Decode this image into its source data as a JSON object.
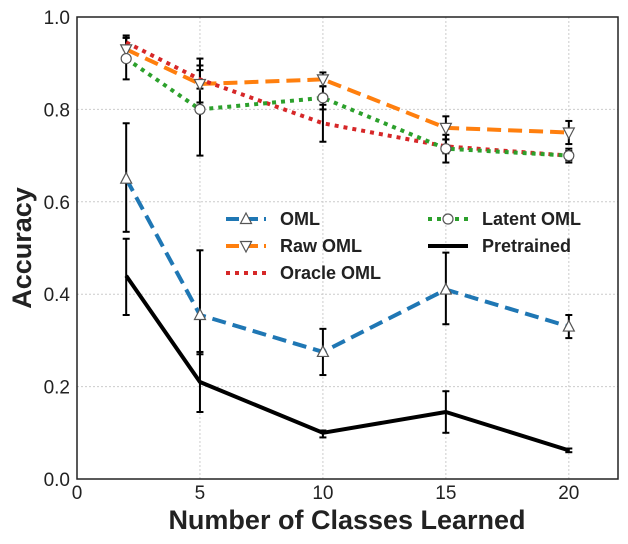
{
  "chart_data": {
    "type": "line",
    "title": "",
    "xlabel": "Number of Classes Learned",
    "ylabel": "Accuracy",
    "xlim": [
      0,
      22
    ],
    "ylim": [
      0.0,
      1.0
    ],
    "xticks": [
      0,
      5,
      10,
      15,
      20
    ],
    "xtick_labels": [
      "0",
      "5",
      "10",
      "15",
      "20"
    ],
    "yticks": [
      0.0,
      0.2,
      0.4,
      0.6,
      0.8,
      1.0
    ],
    "ytick_labels": [
      "0.0",
      "0.2",
      "0.4",
      "0.6",
      "0.8",
      "1.0"
    ],
    "grid": true,
    "legend_position": "center",
    "x": [
      2,
      5,
      10,
      15,
      20
    ],
    "series": [
      {
        "name": "OML",
        "values": [
          0.65,
          0.355,
          0.275,
          0.41,
          0.33
        ],
        "error_low": [
          0.535,
          0.27,
          0.225,
          0.335,
          0.305
        ],
        "error_high": [
          0.77,
          0.495,
          0.325,
          0.49,
          0.355
        ],
        "color": "#1f77b4",
        "style": "dashed",
        "marker": "triangle-up"
      },
      {
        "name": "Raw OML",
        "values": [
          0.93,
          0.855,
          0.865,
          0.76,
          0.75
        ],
        "error_low": [
          0.905,
          0.815,
          0.85,
          0.735,
          0.725
        ],
        "error_high": [
          0.955,
          0.895,
          0.88,
          0.785,
          0.775
        ],
        "color": "#ff7f0e",
        "style": "dashed",
        "marker": "triangle-down"
      },
      {
        "name": "Oracle OML",
        "values": [
          0.945,
          0.865,
          0.77,
          0.72,
          0.7
        ],
        "error_low": [
          0.93,
          0.845,
          0.73,
          0.705,
          0.69
        ],
        "error_high": [
          0.96,
          0.885,
          0.81,
          0.735,
          0.71
        ],
        "color": "#d62728",
        "style": "dotted",
        "marker": "none"
      },
      {
        "name": "Latent OML",
        "values": [
          0.91,
          0.8,
          0.825,
          0.715,
          0.7
        ],
        "error_low": [
          0.865,
          0.7,
          0.8,
          0.685,
          0.685
        ],
        "error_high": [
          0.955,
          0.91,
          0.85,
          0.745,
          0.715
        ],
        "color": "#2ca02c",
        "style": "dotted",
        "marker": "circle"
      },
      {
        "name": "Pretrained",
        "values": [
          0.44,
          0.21,
          0.1,
          0.145,
          0.062
        ],
        "error_low": [
          0.355,
          0.145,
          0.09,
          0.1,
          0.058
        ],
        "error_high": [
          0.52,
          0.275,
          0.105,
          0.19,
          0.066
        ],
        "color": "#000000",
        "style": "solid",
        "marker": "none"
      }
    ]
  }
}
